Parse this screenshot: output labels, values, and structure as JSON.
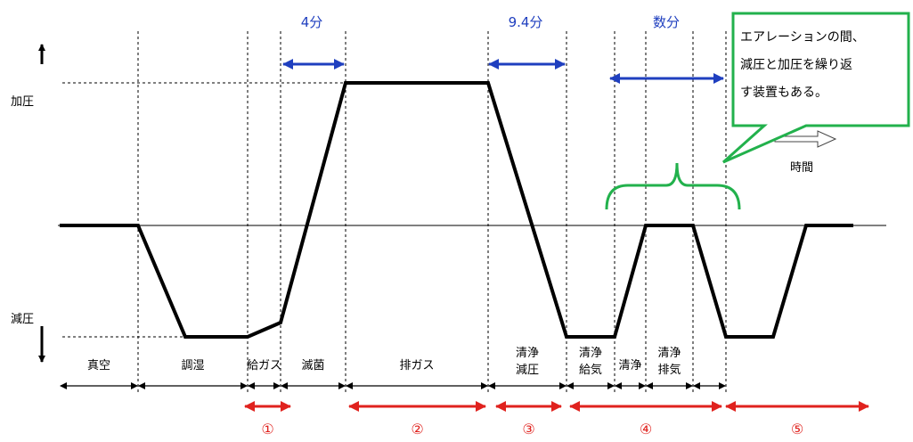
{
  "y_axis": {
    "top_label": "加圧",
    "bottom_label": "減圧"
  },
  "time_label": "時間",
  "durations": [
    "4分",
    "9.4分",
    "数分"
  ],
  "callout_lines": [
    "エアレーションの間、",
    "減圧と加圧を繰り返",
    "す装置もある。"
  ],
  "segments": [
    {
      "label": "真空"
    },
    {
      "label": "調湿"
    },
    {
      "label": "給ガス"
    },
    {
      "label": "滅菌"
    },
    {
      "label": "排ガス"
    },
    {
      "label": "清浄\n減圧"
    },
    {
      "label": "清浄\n給気"
    },
    {
      "label": "清浄"
    },
    {
      "label": "清浄\n排気"
    }
  ],
  "phases": [
    "①",
    "②",
    "③",
    "④",
    "⑤"
  ],
  "colors": {
    "profile": "#000000",
    "duration_arrows": "#1f3fbf",
    "phase_arrows": "#e0221e",
    "callout": "#22b14c"
  }
}
